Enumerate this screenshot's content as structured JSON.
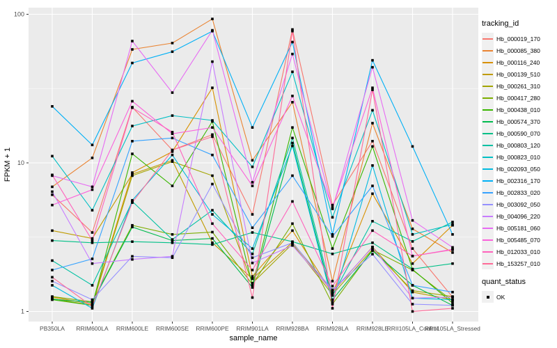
{
  "chart_data": {
    "type": "line",
    "title": "",
    "xlabel": "sample_name",
    "ylabel": "FPKM + 1",
    "y_scale": "log10",
    "ylim": [
      1,
      110
    ],
    "y_tick_labels": [
      "1",
      "10",
      "100"
    ],
    "y_tick_values": [
      1,
      10,
      100
    ],
    "y_minor_values": [
      3.162,
      31.62
    ],
    "grid": true,
    "legend_position": "right",
    "x_categories": [
      "PB350LA",
      "RRIM600LA",
      "RRIM600LE",
      "RRIM600SE",
      "RRIM600PE",
      "RRIM901LA",
      "RRIM928BA",
      "RRIM928LA",
      "RRIM928LE",
      "RRII105LA_Control",
      "RRII105LA_Stressed"
    ],
    "legend": {
      "color_title": "tracking_id",
      "shape_title": "quant_status",
      "shape_ok_label": "OK"
    },
    "point_marker": "black-square",
    "series": [
      {
        "name": "Hb_000019_170",
        "color": "#F8766D",
        "values": [
          6.1,
          3.4,
          23.7,
          12.2,
          15.5,
          4.5,
          79,
          5.2,
          14.0,
          2.65,
          1.25
        ]
      },
      {
        "name": "Hb_000085_380",
        "color": "#EA8331",
        "values": [
          6.9,
          10.8,
          58,
          64,
          93,
          10.4,
          25.6,
          1.6,
          18.5,
          3.6,
          2.49
        ]
      },
      {
        "name": "Hb_000116_240",
        "color": "#D89000",
        "values": [
          1.25,
          1.12,
          8.6,
          11.9,
          32,
          1.72,
          3.5,
          1.32,
          6.2,
          2.1,
          3.8
        ]
      },
      {
        "name": "Hb_000139_510",
        "color": "#C09B00",
        "values": [
          3.5,
          3.1,
          8.4,
          10.4,
          2.9,
          1.66,
          2.92,
          1.35,
          2.72,
          1.35,
          1.2
        ]
      },
      {
        "name": "Hb_000261_310",
        "color": "#A3A500",
        "values": [
          1.22,
          1.1,
          8.2,
          10.2,
          8.2,
          1.55,
          2.85,
          1.3,
          2.62,
          1.38,
          1.26
        ]
      },
      {
        "name": "Hb_000417_280",
        "color": "#7CAE00",
        "values": [
          1.26,
          1.16,
          3.8,
          3.3,
          3.42,
          1.52,
          3.9,
          1.12,
          2.6,
          1.9,
          1.18
        ]
      },
      {
        "name": "Hb_000438_010",
        "color": "#39B600",
        "values": [
          1.2,
          1.1,
          11.5,
          7.0,
          19.0,
          1.5,
          17.3,
          2.65,
          12.9,
          1.92,
          1.14
        ]
      },
      {
        "name": "Hb_000574_370",
        "color": "#00BB4E",
        "values": [
          1.21,
          1.15,
          3.7,
          3.0,
          3.1,
          1.45,
          13.6,
          1.2,
          2.56,
          1.5,
          1.1
        ]
      },
      {
        "name": "Hb_000590_070",
        "color": "#00C087",
        "values": [
          3.0,
          2.9,
          2.95,
          2.9,
          2.82,
          3.4,
          2.95,
          2.44,
          2.9,
          1.93,
          2.1
        ]
      },
      {
        "name": "Hb_000803_120",
        "color": "#00C1A3",
        "values": [
          2.2,
          1.5,
          5.5,
          3.05,
          4.8,
          2.44,
          14.7,
          1.28,
          4.05,
          2.96,
          4.0
        ]
      },
      {
        "name": "Hb_000823_010",
        "color": "#00BFC4",
        "values": [
          11.1,
          4.8,
          17.7,
          20.8,
          19.3,
          9.4,
          41,
          4.3,
          22.6,
          3.3,
          3.85
        ]
      },
      {
        "name": "Hb_002093_050",
        "color": "#00BAE0",
        "values": [
          1.5,
          1.05,
          5.6,
          11.3,
          4.5,
          2.65,
          13.0,
          1.15,
          9.6,
          1.23,
          1.2
        ]
      },
      {
        "name": "Hb_002316_170",
        "color": "#00B0F6",
        "values": [
          24,
          13.2,
          47,
          56,
          77,
          17.3,
          65,
          3.3,
          49,
          12.9,
          3.3
        ]
      },
      {
        "name": "Hb_002833_020",
        "color": "#35A2FF",
        "values": [
          1.9,
          2.26,
          14.0,
          14.7,
          11.3,
          3.66,
          8.2,
          3.2,
          7.0,
          1.5,
          1.35
        ]
      },
      {
        "name": "Hb_003092_050",
        "color": "#9590FF",
        "values": [
          1.6,
          1.2,
          2.35,
          2.3,
          7.2,
          2.3,
          2.9,
          1.4,
          2.43,
          1.12,
          1.1
        ]
      },
      {
        "name": "Hb_004096_220",
        "color": "#C77CFF",
        "values": [
          6.4,
          2.1,
          2.24,
          2.35,
          48,
          2.12,
          2.78,
          1.37,
          2.7,
          1.23,
          1.25
        ]
      },
      {
        "name": "Hb_005181_060",
        "color": "#E76BF3",
        "values": [
          8.2,
          6.9,
          66,
          29.7,
          78,
          7.4,
          54,
          4.9,
          44,
          4.1,
          2.7
        ]
      },
      {
        "name": "Hb_005485_070",
        "color": "#FA62DB",
        "values": [
          5.2,
          6.6,
          26,
          15.7,
          17.3,
          7.0,
          28.2,
          5.0,
          32,
          2.36,
          2.62
        ]
      },
      {
        "name": "Hb_012033_010",
        "color": "#FF62BC",
        "values": [
          8.3,
          3.0,
          23.5,
          16.1,
          3.9,
          1.9,
          5.5,
          1.48,
          3.5,
          2.36,
          2.6
        ]
      },
      {
        "name": "Hb_153257_010",
        "color": "#FF6A98",
        "values": [
          1.7,
          1.08,
          5.4,
          12.2,
          15.0,
          1.24,
          77,
          1.05,
          31,
          1.0,
          1.05
        ]
      }
    ]
  },
  "theme": {
    "panel_bg": "#EBEBEB",
    "grid_color": "#FFFFFF",
    "tick_text_color": "#4D4D4D",
    "axis_title_color": "#000000",
    "point_color": "#000000",
    "legend_key_bg": "#F0F0F0"
  }
}
